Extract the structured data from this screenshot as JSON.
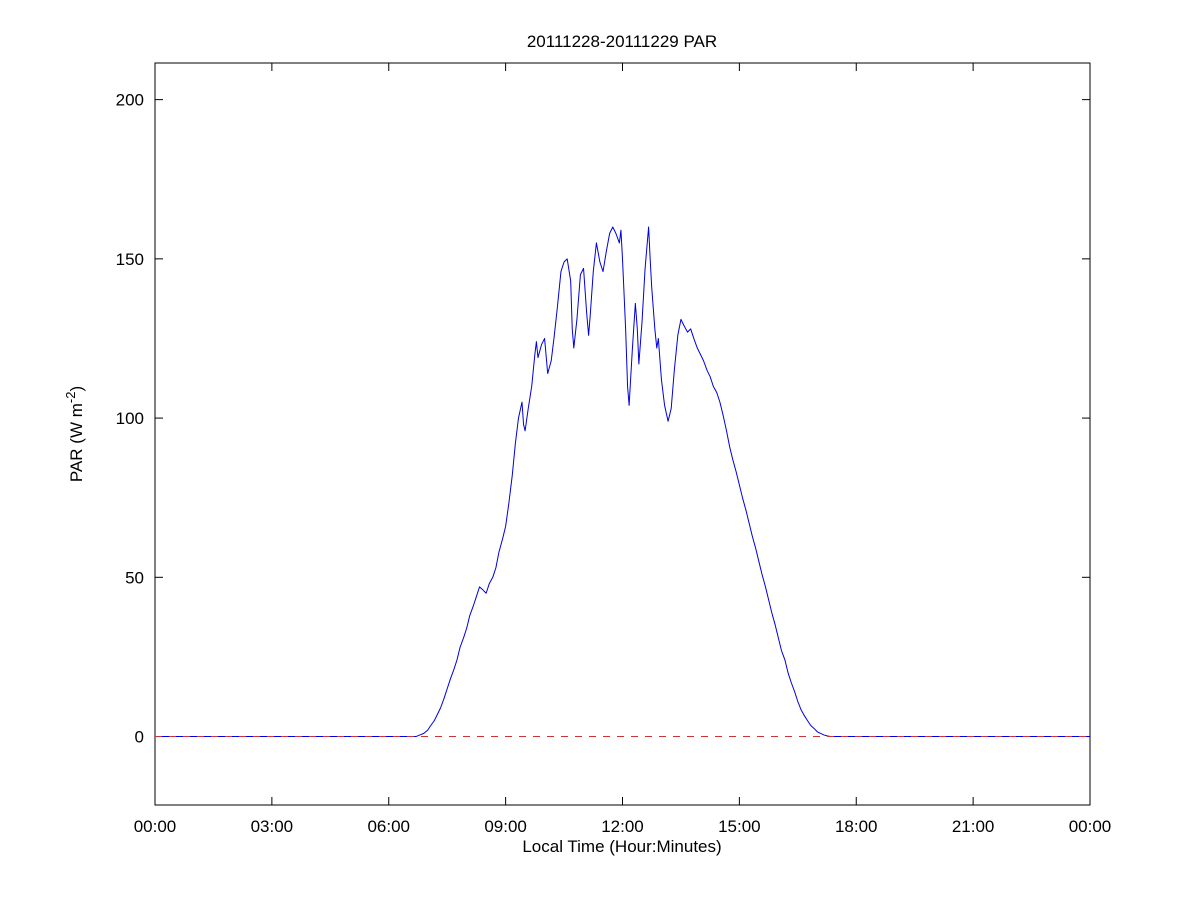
{
  "chart_data": {
    "type": "line",
    "title": "20111228-20111229 PAR",
    "xlabel": "Local Time (Hour:Minutes)",
    "ylabel": "PAR (W m⁻²)",
    "ylabel_parts": {
      "prefix": "PAR (W m",
      "sup": "-2",
      "suffix": ")"
    },
    "xlim": [
      0,
      24
    ],
    "ylim": [
      -21.5,
      211.5
    ],
    "x_ticks": [
      0,
      3,
      6,
      9,
      12,
      15,
      18,
      21,
      24
    ],
    "x_tick_labels": [
      "00:00",
      "03:00",
      "06:00",
      "09:00",
      "12:00",
      "15:00",
      "18:00",
      "21:00",
      "00:00"
    ],
    "y_ticks": [
      0,
      50,
      100,
      150,
      200
    ],
    "y_tick_labels": [
      "0",
      "50",
      "100",
      "150",
      "200"
    ],
    "grid": false,
    "legend": null,
    "axis_color": "#000000",
    "series": [
      {
        "name": "PAR",
        "color": "#0000dd",
        "style": "solid",
        "points": [
          [
            0,
            0
          ],
          [
            1,
            0
          ],
          [
            2,
            0
          ],
          [
            3,
            0
          ],
          [
            4,
            0
          ],
          [
            5,
            0
          ],
          [
            6,
            0
          ],
          [
            6.5,
            0
          ],
          [
            6.7,
            0
          ],
          [
            6.8,
            0.5
          ],
          [
            6.9,
            1
          ],
          [
            7,
            2
          ],
          [
            7.08,
            3.5
          ],
          [
            7.17,
            5
          ],
          [
            7.25,
            7
          ],
          [
            7.33,
            9
          ],
          [
            7.42,
            12
          ],
          [
            7.5,
            15
          ],
          [
            7.58,
            18
          ],
          [
            7.67,
            21
          ],
          [
            7.75,
            24
          ],
          [
            7.83,
            28
          ],
          [
            7.92,
            31
          ],
          [
            8,
            34
          ],
          [
            8.08,
            38
          ],
          [
            8.17,
            41
          ],
          [
            8.25,
            44
          ],
          [
            8.33,
            47
          ],
          [
            8.42,
            46
          ],
          [
            8.5,
            45
          ],
          [
            8.58,
            48
          ],
          [
            8.67,
            50
          ],
          [
            8.75,
            53
          ],
          [
            8.83,
            58
          ],
          [
            8.92,
            62
          ],
          [
            9,
            66
          ],
          [
            9.08,
            73
          ],
          [
            9.17,
            82
          ],
          [
            9.25,
            92
          ],
          [
            9.33,
            100
          ],
          [
            9.42,
            105
          ],
          [
            9.46,
            98
          ],
          [
            9.5,
            96
          ],
          [
            9.58,
            103
          ],
          [
            9.67,
            110
          ],
          [
            9.75,
            120
          ],
          [
            9.79,
            124
          ],
          [
            9.83,
            119
          ],
          [
            9.92,
            123
          ],
          [
            10,
            125
          ],
          [
            10.08,
            114
          ],
          [
            10.17,
            118
          ],
          [
            10.25,
            126
          ],
          [
            10.33,
            135
          ],
          [
            10.42,
            146
          ],
          [
            10.5,
            149
          ],
          [
            10.58,
            150
          ],
          [
            10.67,
            143
          ],
          [
            10.71,
            128
          ],
          [
            10.75,
            122
          ],
          [
            10.83,
            131
          ],
          [
            10.92,
            145
          ],
          [
            11,
            147
          ],
          [
            11.08,
            133
          ],
          [
            11.13,
            126
          ],
          [
            11.17,
            132
          ],
          [
            11.25,
            146
          ],
          [
            11.33,
            155
          ],
          [
            11.42,
            149
          ],
          [
            11.5,
            146
          ],
          [
            11.58,
            152
          ],
          [
            11.67,
            158
          ],
          [
            11.75,
            160
          ],
          [
            11.83,
            158
          ],
          [
            11.92,
            155
          ],
          [
            11.96,
            159
          ],
          [
            12,
            150
          ],
          [
            12.08,
            128
          ],
          [
            12.13,
            110
          ],
          [
            12.17,
            104
          ],
          [
            12.25,
            121
          ],
          [
            12.33,
            136
          ],
          [
            12.38,
            128
          ],
          [
            12.42,
            117
          ],
          [
            12.5,
            130
          ],
          [
            12.58,
            147
          ],
          [
            12.67,
            160
          ],
          [
            12.71,
            150
          ],
          [
            12.75,
            141
          ],
          [
            12.83,
            128
          ],
          [
            12.88,
            122
          ],
          [
            12.92,
            125
          ],
          [
            13,
            112
          ],
          [
            13.08,
            104
          ],
          [
            13.17,
            99
          ],
          [
            13.25,
            103
          ],
          [
            13.33,
            115
          ],
          [
            13.42,
            126
          ],
          [
            13.5,
            131
          ],
          [
            13.58,
            129
          ],
          [
            13.67,
            127
          ],
          [
            13.75,
            128
          ],
          [
            13.83,
            125
          ],
          [
            13.92,
            122
          ],
          [
            14,
            120
          ],
          [
            14.08,
            118
          ],
          [
            14.17,
            115
          ],
          [
            14.25,
            113
          ],
          [
            14.33,
            110
          ],
          [
            14.42,
            108
          ],
          [
            14.5,
            105
          ],
          [
            14.58,
            101
          ],
          [
            14.67,
            96
          ],
          [
            14.75,
            91
          ],
          [
            14.83,
            87
          ],
          [
            14.92,
            83
          ],
          [
            15,
            79
          ],
          [
            15.08,
            75
          ],
          [
            15.17,
            71
          ],
          [
            15.25,
            67
          ],
          [
            15.33,
            63
          ],
          [
            15.42,
            59
          ],
          [
            15.5,
            55
          ],
          [
            15.58,
            51
          ],
          [
            15.67,
            47
          ],
          [
            15.75,
            43
          ],
          [
            15.83,
            39
          ],
          [
            15.92,
            35
          ],
          [
            16,
            31
          ],
          [
            16.08,
            27
          ],
          [
            16.17,
            24
          ],
          [
            16.25,
            20
          ],
          [
            16.33,
            17
          ],
          [
            16.42,
            14
          ],
          [
            16.5,
            11
          ],
          [
            16.58,
            8.5
          ],
          [
            16.67,
            6.5
          ],
          [
            16.75,
            5
          ],
          [
            16.83,
            3.5
          ],
          [
            16.92,
            2.5
          ],
          [
            17,
            1.5
          ],
          [
            17.08,
            1
          ],
          [
            17.17,
            0.5
          ],
          [
            17.25,
            0.2
          ],
          [
            17.33,
            0
          ],
          [
            17.5,
            0
          ],
          [
            18,
            0
          ],
          [
            19,
            0
          ],
          [
            20,
            0
          ],
          [
            21,
            0
          ],
          [
            22,
            0
          ],
          [
            23,
            0
          ],
          [
            24,
            0
          ]
        ]
      },
      {
        "name": "zero reference",
        "color": "#cc3333",
        "style": "dashed",
        "points": [
          [
            0,
            0
          ],
          [
            24,
            0
          ]
        ]
      }
    ]
  }
}
